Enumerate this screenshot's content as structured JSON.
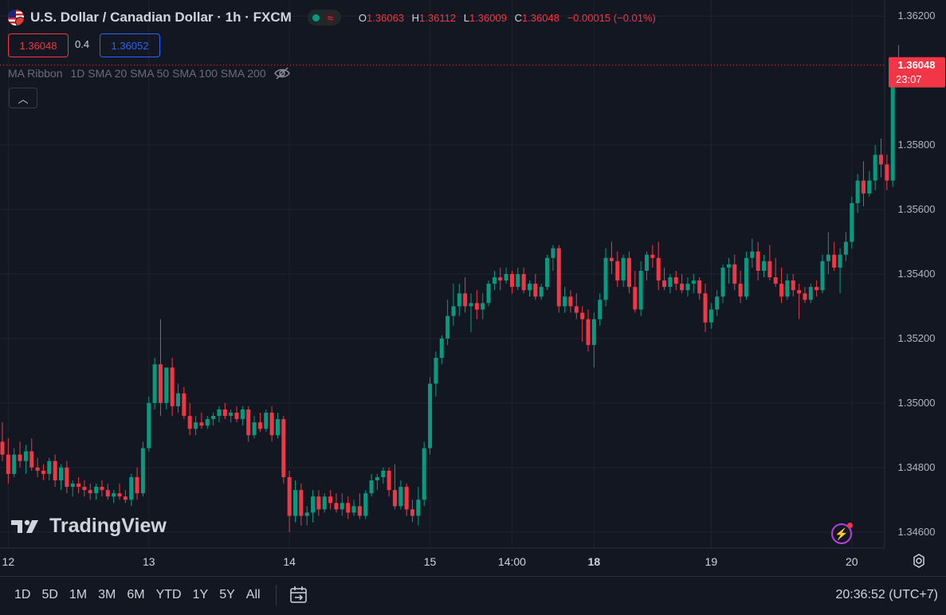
{
  "header": {
    "title": "U.S. Dollar / Canadian Dollar · 1h · FXCM",
    "ohlc": [
      {
        "k": "O",
        "v": "1.36063"
      },
      {
        "k": "H",
        "v": "1.36112"
      },
      {
        "k": "L",
        "v": "1.36009"
      },
      {
        "k": "C",
        "v": "1.36048"
      }
    ],
    "change": "−0.00015 (−0.01%)"
  },
  "trade": {
    "sell": "1.36048",
    "spread": "0.4",
    "buy": "1.36052"
  },
  "indicator": {
    "name": "MA Ribbon",
    "params": "1D SMA 20 SMA 50 SMA 100 SMA 200"
  },
  "price_label": {
    "price": "1.36048",
    "countdown": "23:07"
  },
  "brand": "TradingView",
  "ranges": [
    "1D",
    "5D",
    "1M",
    "3M",
    "6M",
    "YTD",
    "1Y",
    "5Y",
    "All"
  ],
  "clock": "20:36:52 (UTC+7)",
  "colors": {
    "up": "#089981",
    "down": "#f23645",
    "bg": "#131722",
    "grid": "#1f2330",
    "text": "#b2b5be"
  },
  "chart_data": {
    "type": "candlestick",
    "x_labels": [
      {
        "label": "12",
        "index": 1
      },
      {
        "label": "13",
        "index": 25
      },
      {
        "label": "14",
        "index": 49
      },
      {
        "label": "15",
        "index": 73
      },
      {
        "label": "14:00",
        "index": 87
      },
      {
        "label": "18",
        "index": 101,
        "bold": true
      },
      {
        "label": "19",
        "index": 121
      },
      {
        "label": "20",
        "index": 145
      }
    ],
    "y_ticks": [
      1.346,
      1.348,
      1.35,
      1.352,
      1.354,
      1.356,
      1.358,
      1.362
    ],
    "y_labels": [
      "1.34600",
      "1.34800",
      "1.35000",
      "1.35200",
      "1.35400",
      "1.35600",
      "1.35800",
      "1.36200"
    ],
    "ylim": [
      1.3455,
      1.3625
    ],
    "last_price": 1.36048,
    "ohlc": [
      [
        1.3488,
        1.3494,
        1.3482,
        1.3484
      ],
      [
        1.3484,
        1.3489,
        1.3475,
        1.3478
      ],
      [
        1.3478,
        1.3486,
        1.3477,
        1.3484
      ],
      [
        1.3484,
        1.3488,
        1.348,
        1.3482
      ],
      [
        1.3482,
        1.3487,
        1.3478,
        1.3485
      ],
      [
        1.3485,
        1.3489,
        1.3479,
        1.348
      ],
      [
        1.348,
        1.3483,
        1.3477,
        1.3479
      ],
      [
        1.3479,
        1.3481,
        1.3476,
        1.3478
      ],
      [
        1.3478,
        1.3483,
        1.3476,
        1.3482
      ],
      [
        1.3482,
        1.3484,
        1.3474,
        1.3476
      ],
      [
        1.3476,
        1.3481,
        1.3473,
        1.348
      ],
      [
        1.348,
        1.3482,
        1.3472,
        1.3474
      ],
      [
        1.3474,
        1.3476,
        1.3471,
        1.3475
      ],
      [
        1.3475,
        1.3477,
        1.3472,
        1.3474
      ],
      [
        1.3474,
        1.3476,
        1.3471,
        1.3473
      ],
      [
        1.3473,
        1.3475,
        1.347,
        1.3472
      ],
      [
        1.3472,
        1.3475,
        1.347,
        1.3474
      ],
      [
        1.3474,
        1.3476,
        1.3471,
        1.3473
      ],
      [
        1.3473,
        1.3475,
        1.347,
        1.3471
      ],
      [
        1.3471,
        1.3473,
        1.3469,
        1.3472
      ],
      [
        1.3472,
        1.3475,
        1.347,
        1.3471
      ],
      [
        1.3471,
        1.3473,
        1.3469,
        1.347
      ],
      [
        1.347,
        1.3478,
        1.3468,
        1.3477
      ],
      [
        1.3477,
        1.348,
        1.347,
        1.3472
      ],
      [
        1.3472,
        1.3488,
        1.3471,
        1.3486
      ],
      [
        1.3486,
        1.3502,
        1.3485,
        1.35
      ],
      [
        1.35,
        1.3514,
        1.3498,
        1.3512
      ],
      [
        1.3512,
        1.3526,
        1.3496,
        1.35
      ],
      [
        1.35,
        1.3511,
        1.3498,
        1.3511
      ],
      [
        1.3511,
        1.3514,
        1.3496,
        1.3499
      ],
      [
        1.3499,
        1.3506,
        1.3497,
        1.3503
      ],
      [
        1.3503,
        1.3505,
        1.3495,
        1.3496
      ],
      [
        1.3496,
        1.35,
        1.349,
        1.3492
      ],
      [
        1.3492,
        1.3496,
        1.349,
        1.3494
      ],
      [
        1.3494,
        1.3497,
        1.3492,
        1.3493
      ],
      [
        1.3493,
        1.3496,
        1.3492,
        1.3495
      ],
      [
        1.3495,
        1.3497,
        1.3493,
        1.3496
      ],
      [
        1.3496,
        1.3499,
        1.3494,
        1.3498
      ],
      [
        1.3498,
        1.35,
        1.3495,
        1.3496
      ],
      [
        1.3496,
        1.3498,
        1.3494,
        1.3497
      ],
      [
        1.3497,
        1.3499,
        1.3494,
        1.3495
      ],
      [
        1.3495,
        1.3499,
        1.3493,
        1.3498
      ],
      [
        1.3498,
        1.3499,
        1.3488,
        1.349
      ],
      [
        1.349,
        1.3496,
        1.3489,
        1.3494
      ],
      [
        1.3494,
        1.3497,
        1.3491,
        1.3492
      ],
      [
        1.3492,
        1.3498,
        1.3491,
        1.3497
      ],
      [
        1.3497,
        1.3499,
        1.3488,
        1.349
      ],
      [
        1.349,
        1.3497,
        1.3489,
        1.3495
      ],
      [
        1.3495,
        1.3496,
        1.3475,
        1.3477
      ],
      [
        1.3477,
        1.3479,
        1.346,
        1.3465
      ],
      [
        1.3465,
        1.3476,
        1.3463,
        1.3473
      ],
      [
        1.3473,
        1.3475,
        1.3462,
        1.3465
      ],
      [
        1.3465,
        1.3468,
        1.3462,
        1.3466
      ],
      [
        1.3466,
        1.3473,
        1.3463,
        1.3471
      ],
      [
        1.3471,
        1.3473,
        1.3465,
        1.3467
      ],
      [
        1.3467,
        1.3472,
        1.3466,
        1.3471
      ],
      [
        1.3471,
        1.3473,
        1.3467,
        1.3469
      ],
      [
        1.3469,
        1.3472,
        1.3466,
        1.3467
      ],
      [
        1.3467,
        1.3472,
        1.3465,
        1.3469
      ],
      [
        1.3469,
        1.3471,
        1.3464,
        1.3466
      ],
      [
        1.3466,
        1.347,
        1.3465,
        1.3468
      ],
      [
        1.3468,
        1.3472,
        1.3464,
        1.3465
      ],
      [
        1.3465,
        1.3473,
        1.3464,
        1.3472
      ],
      [
        1.3472,
        1.3478,
        1.3471,
        1.3476
      ],
      [
        1.3476,
        1.3478,
        1.3473,
        1.3477
      ],
      [
        1.3477,
        1.348,
        1.3475,
        1.3479
      ],
      [
        1.3479,
        1.348,
        1.3471,
        1.3473
      ],
      [
        1.3473,
        1.3481,
        1.3467,
        1.3468
      ],
      [
        1.3468,
        1.3476,
        1.3467,
        1.3474
      ],
      [
        1.3474,
        1.3475,
        1.3465,
        1.3467
      ],
      [
        1.3467,
        1.347,
        1.3463,
        1.3465
      ],
      [
        1.3465,
        1.3474,
        1.3462,
        1.347
      ],
      [
        1.347,
        1.3488,
        1.3468,
        1.3486
      ],
      [
        1.3486,
        1.3508,
        1.3484,
        1.3506
      ],
      [
        1.3506,
        1.3516,
        1.3502,
        1.3514
      ],
      [
        1.3514,
        1.3521,
        1.3512,
        1.352
      ],
      [
        1.352,
        1.3532,
        1.3518,
        1.3527
      ],
      [
        1.3527,
        1.3537,
        1.3524,
        1.353
      ],
      [
        1.353,
        1.3537,
        1.3527,
        1.3534
      ],
      [
        1.3534,
        1.3539,
        1.3528,
        1.353
      ],
      [
        1.353,
        1.3534,
        1.3522,
        1.3531
      ],
      [
        1.3531,
        1.3535,
        1.3526,
        1.3529
      ],
      [
        1.3529,
        1.3534,
        1.3526,
        1.3531
      ],
      [
        1.3531,
        1.3538,
        1.353,
        1.3537
      ],
      [
        1.3537,
        1.3541,
        1.3535,
        1.3539
      ],
      [
        1.3539,
        1.3542,
        1.3535,
        1.3538
      ],
      [
        1.3538,
        1.3542,
        1.3537,
        1.354
      ],
      [
        1.354,
        1.3541,
        1.3534,
        1.3536
      ],
      [
        1.3536,
        1.3542,
        1.3535,
        1.354
      ],
      [
        1.354,
        1.3542,
        1.3534,
        1.3535
      ],
      [
        1.3535,
        1.3538,
        1.3533,
        1.3537
      ],
      [
        1.3537,
        1.354,
        1.3532,
        1.3533
      ],
      [
        1.3533,
        1.3537,
        1.3532,
        1.3536
      ],
      [
        1.3536,
        1.3546,
        1.3535,
        1.3545
      ],
      [
        1.3545,
        1.3549,
        1.3541,
        1.3548
      ],
      [
        1.3548,
        1.3549,
        1.3528,
        1.353
      ],
      [
        1.353,
        1.3536,
        1.3528,
        1.3533
      ],
      [
        1.3533,
        1.3535,
        1.3528,
        1.353
      ],
      [
        1.353,
        1.3534,
        1.3526,
        1.3528
      ],
      [
        1.3528,
        1.353,
        1.3519,
        1.3526
      ],
      [
        1.3526,
        1.3529,
        1.3516,
        1.3518
      ],
      [
        1.3518,
        1.3528,
        1.3511,
        1.3526
      ],
      [
        1.3526,
        1.3534,
        1.3524,
        1.3532
      ],
      [
        1.3532,
        1.3548,
        1.353,
        1.3545
      ],
      [
        1.3545,
        1.355,
        1.354,
        1.3544
      ],
      [
        1.3544,
        1.3547,
        1.3536,
        1.3538
      ],
      [
        1.3538,
        1.3546,
        1.3536,
        1.3545
      ],
      [
        1.3545,
        1.3547,
        1.3534,
        1.3536
      ],
      [
        1.3536,
        1.3541,
        1.3528,
        1.3529
      ],
      [
        1.3529,
        1.3544,
        1.3527,
        1.3541
      ],
      [
        1.3541,
        1.3547,
        1.3538,
        1.3546
      ],
      [
        1.3546,
        1.3549,
        1.3542,
        1.3545
      ],
      [
        1.3545,
        1.355,
        1.3535,
        1.3538
      ],
      [
        1.3538,
        1.3542,
        1.3535,
        1.3536
      ],
      [
        1.3536,
        1.354,
        1.3534,
        1.3539
      ],
      [
        1.3539,
        1.3541,
        1.3535,
        1.3537
      ],
      [
        1.3537,
        1.354,
        1.3534,
        1.3535
      ],
      [
        1.3535,
        1.3539,
        1.3533,
        1.3537
      ],
      [
        1.3537,
        1.354,
        1.3534,
        1.3538
      ],
      [
        1.3538,
        1.3539,
        1.3532,
        1.3534
      ],
      [
        1.3534,
        1.3537,
        1.3522,
        1.3525
      ],
      [
        1.3525,
        1.3531,
        1.3523,
        1.3529
      ],
      [
        1.3529,
        1.3535,
        1.3527,
        1.3533
      ],
      [
        1.3533,
        1.3543,
        1.3531,
        1.3542
      ],
      [
        1.3542,
        1.3545,
        1.3537,
        1.3543
      ],
      [
        1.3543,
        1.3546,
        1.3535,
        1.3537
      ],
      [
        1.3537,
        1.3541,
        1.3531,
        1.3533
      ],
      [
        1.3533,
        1.3547,
        1.3532,
        1.3545
      ],
      [
        1.3545,
        1.3551,
        1.3542,
        1.3547
      ],
      [
        1.3547,
        1.355,
        1.3538,
        1.3541
      ],
      [
        1.3541,
        1.3546,
        1.3539,
        1.3544
      ],
      [
        1.3544,
        1.3549,
        1.3538,
        1.3539
      ],
      [
        1.3539,
        1.3545,
        1.3536,
        1.3537
      ],
      [
        1.3537,
        1.3542,
        1.3531,
        1.3533
      ],
      [
        1.3533,
        1.354,
        1.3532,
        1.3538
      ],
      [
        1.3538,
        1.354,
        1.3533,
        1.3535
      ],
      [
        1.3535,
        1.3537,
        1.3526,
        1.3534
      ],
      [
        1.3534,
        1.3536,
        1.3531,
        1.3532
      ],
      [
        1.3532,
        1.3537,
        1.3531,
        1.3536
      ],
      [
        1.3536,
        1.3538,
        1.3533,
        1.3535
      ],
      [
        1.3535,
        1.3546,
        1.3534,
        1.3544
      ],
      [
        1.3544,
        1.3553,
        1.354,
        1.3546
      ],
      [
        1.3546,
        1.355,
        1.3541,
        1.3542
      ],
      [
        1.3542,
        1.3548,
        1.3534,
        1.3546
      ],
      [
        1.3546,
        1.3553,
        1.3544,
        1.355
      ],
      [
        1.355,
        1.3564,
        1.3548,
        1.3562
      ],
      [
        1.3562,
        1.3571,
        1.3559,
        1.3569
      ],
      [
        1.3569,
        1.3575,
        1.3561,
        1.3565
      ],
      [
        1.3565,
        1.3572,
        1.3564,
        1.3569
      ],
      [
        1.3569,
        1.358,
        1.3566,
        1.3577
      ],
      [
        1.3577,
        1.3582,
        1.357,
        1.3574
      ],
      [
        1.3574,
        1.3577,
        1.3566,
        1.3569
      ],
      [
        1.3569,
        1.3605,
        1.3567,
        1.3604
      ],
      [
        1.3606,
        1.3611,
        1.3601,
        1.3605
      ]
    ]
  }
}
